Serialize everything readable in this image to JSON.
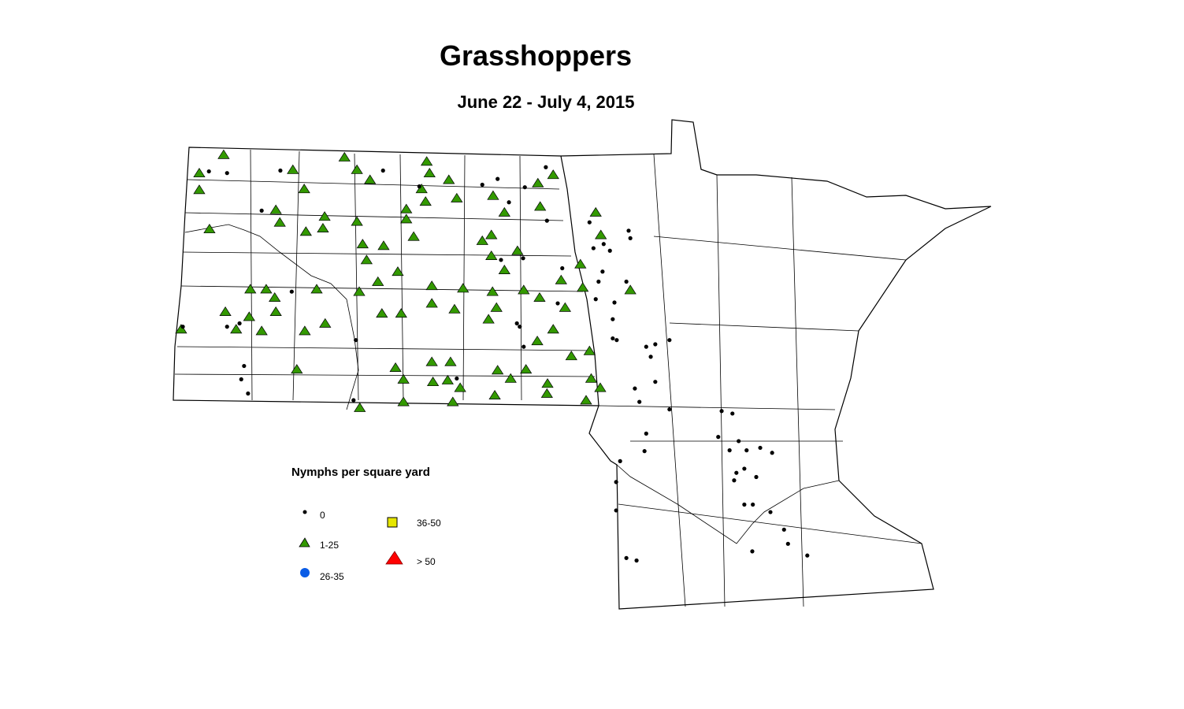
{
  "title": "Grasshoppers",
  "subtitle": "June 22 - July 4, 2015",
  "legend": {
    "title": "Nymphs per square yard",
    "classes": [
      {
        "label": "0",
        "symbol": "dot",
        "color": "#000000"
      },
      {
        "label": "1-25",
        "symbol": "triangle",
        "color": "#339900"
      },
      {
        "label": "26-35",
        "symbol": "circle",
        "color": "#0a5ce6"
      },
      {
        "label": "36-50",
        "symbol": "square",
        "color": "#e6e600"
      },
      {
        "label": "> 50",
        "symbol": "triangle-large",
        "color": "#ff0000"
      }
    ]
  },
  "regions": [
    "North Dakota",
    "Minnesota"
  ],
  "observations": {
    "class_1_25": [
      [
        -103.19,
        48.94
      ],
      [
        -103.62,
        48.72
      ],
      [
        -103.62,
        48.52
      ],
      [
        -103.44,
        48.05
      ],
      [
        -101.97,
        48.76
      ],
      [
        -101.77,
        48.53
      ],
      [
        -102.27,
        48.28
      ],
      [
        -102.2,
        48.13
      ],
      [
        -101.74,
        48.02
      ],
      [
        -101.41,
        48.2
      ],
      [
        -101.44,
        48.06
      ],
      [
        -100.84,
        48.14
      ],
      [
        -100.74,
        47.87
      ],
      [
        -100.67,
        47.68
      ],
      [
        -100.37,
        47.85
      ],
      [
        -100.12,
        47.54
      ],
      [
        -100.47,
        47.42
      ],
      [
        -100.8,
        47.3
      ],
      [
        -100.4,
        47.04
      ],
      [
        -100.06,
        47.04
      ],
      [
        -99.52,
        47.37
      ],
      [
        -98.97,
        47.34
      ],
      [
        -99.52,
        47.16
      ],
      [
        -99.12,
        47.09
      ],
      [
        -98.47,
        47.98
      ],
      [
        -98.47,
        47.73
      ],
      [
        -98.01,
        47.79
      ],
      [
        -98.24,
        47.56
      ],
      [
        -98.45,
        47.3
      ],
      [
        -98.38,
        47.11
      ],
      [
        -98.52,
        46.97
      ],
      [
        -97.9,
        47.32
      ],
      [
        -97.62,
        47.23
      ],
      [
        -97.24,
        47.44
      ],
      [
        -97.17,
        47.11
      ],
      [
        -97.38,
        46.85
      ],
      [
        -97.66,
        46.71
      ],
      [
        -96.9,
        47.63
      ],
      [
        -96.63,
        48.25
      ],
      [
        -96.54,
        47.98
      ],
      [
        -96.74,
        46.59
      ],
      [
        -96.71,
        46.26
      ],
      [
        -96.55,
        46.15
      ],
      [
        -96.8,
        46.0
      ],
      [
        -96.02,
        47.32
      ],
      [
        -102.72,
        47.33
      ],
      [
        -102.44,
        47.33
      ],
      [
        -102.29,
        47.23
      ],
      [
        -103.16,
        47.06
      ],
      [
        -102.74,
        47.0
      ],
      [
        -102.52,
        46.83
      ],
      [
        -102.27,
        47.06
      ],
      [
        -101.76,
        46.83
      ],
      [
        -101.4,
        46.92
      ],
      [
        -101.9,
        46.37
      ],
      [
        -103.94,
        46.85
      ],
      [
        -101.55,
        47.33
      ],
      [
        -100.79,
        45.91
      ],
      [
        -100.16,
        46.39
      ],
      [
        -100.02,
        46.25
      ],
      [
        -100.02,
        45.98
      ],
      [
        -99.52,
        46.46
      ],
      [
        -99.19,
        46.46
      ],
      [
        -99.5,
        46.22
      ],
      [
        -99.24,
        46.24
      ],
      [
        -99.02,
        46.15
      ],
      [
        -99.15,
        45.98
      ],
      [
        -98.36,
        46.36
      ],
      [
        -98.13,
        46.26
      ],
      [
        -98.41,
        46.06
      ],
      [
        -97.86,
        46.37
      ],
      [
        -97.48,
        46.2
      ],
      [
        -97.49,
        46.08
      ],
      [
        -97.06,
        46.53
      ],
      [
        -101.06,
        48.91
      ],
      [
        -100.84,
        48.76
      ],
      [
        -100.61,
        48.64
      ],
      [
        -99.61,
        48.86
      ],
      [
        -99.56,
        48.72
      ],
      [
        -99.7,
        48.53
      ],
      [
        -99.63,
        48.38
      ],
      [
        -99.97,
        48.29
      ],
      [
        -99.97,
        48.17
      ],
      [
        -99.84,
        47.96
      ],
      [
        -99.08,
        48.42
      ],
      [
        -99.22,
        48.64
      ],
      [
        -97.65,
        48.6
      ],
      [
        -97.38,
        48.7
      ],
      [
        -97.61,
        48.32
      ],
      [
        -98.24,
        48.25
      ],
      [
        -98.44,
        48.45
      ],
      [
        -98.63,
        47.91
      ],
      [
        -96.86,
        47.35
      ],
      [
        -102.97,
        46.85
      ]
    ],
    "class_0": [
      [
        -103.45,
        48.74
      ],
      [
        -103.13,
        48.72
      ],
      [
        -102.52,
        48.27
      ],
      [
        -102.19,
        48.75
      ],
      [
        -101.99,
        47.3
      ],
      [
        -103.13,
        46.88
      ],
      [
        -102.91,
        46.92
      ],
      [
        -103.91,
        46.88
      ],
      [
        -102.83,
        46.41
      ],
      [
        -102.76,
        46.08
      ],
      [
        -102.88,
        46.25
      ],
      [
        -100.86,
        46.72
      ],
      [
        -100.9,
        46.0
      ],
      [
        -100.38,
        48.75
      ],
      [
        -99.74,
        48.56
      ],
      [
        -98.63,
        48.58
      ],
      [
        -98.36,
        48.65
      ],
      [
        -98.16,
        48.37
      ],
      [
        -97.88,
        48.55
      ],
      [
        -97.51,
        48.79
      ],
      [
        -97.49,
        48.15
      ],
      [
        -97.91,
        47.7
      ],
      [
        -98.3,
        47.68
      ],
      [
        -98.02,
        46.92
      ],
      [
        -97.9,
        46.64
      ],
      [
        -97.3,
        47.16
      ],
      [
        -97.22,
        47.58
      ],
      [
        -96.74,
        48.13
      ],
      [
        -96.67,
        47.82
      ],
      [
        -96.49,
        47.87
      ],
      [
        -96.38,
        47.79
      ],
      [
        -96.05,
        48.03
      ],
      [
        -96.02,
        47.94
      ],
      [
        -96.51,
        47.54
      ],
      [
        -96.63,
        47.21
      ],
      [
        -96.58,
        47.42
      ],
      [
        -96.3,
        47.17
      ],
      [
        -96.09,
        47.42
      ],
      [
        -96.33,
        46.97
      ],
      [
        -96.33,
        46.74
      ],
      [
        -96.26,
        46.72
      ],
      [
        -95.74,
        46.64
      ],
      [
        -95.58,
        46.67
      ],
      [
        -95.33,
        46.72
      ],
      [
        -95.66,
        46.52
      ],
      [
        -95.58,
        46.22
      ],
      [
        -95.94,
        46.14
      ],
      [
        -95.86,
        45.98
      ],
      [
        -95.33,
        45.89
      ],
      [
        -95.74,
        45.6
      ],
      [
        -95.77,
        45.39
      ],
      [
        -96.2,
        45.27
      ],
      [
        -96.27,
        45.02
      ],
      [
        -96.27,
        44.68
      ],
      [
        -94.41,
        45.87
      ],
      [
        -94.22,
        45.84
      ],
      [
        -94.47,
        45.56
      ],
      [
        -94.11,
        45.51
      ],
      [
        -94.27,
        45.4
      ],
      [
        -93.97,
        45.4
      ],
      [
        -93.73,
        45.43
      ],
      [
        -93.52,
        45.37
      ],
      [
        -94.15,
        45.13
      ],
      [
        -94.01,
        45.18
      ],
      [
        -93.8,
        45.08
      ],
      [
        -94.19,
        45.04
      ],
      [
        -94.01,
        44.75
      ],
      [
        -93.86,
        44.75
      ],
      [
        -93.55,
        44.66
      ],
      [
        -93.31,
        44.45
      ],
      [
        -93.87,
        44.19
      ],
      [
        -92.9,
        44.14
      ],
      [
        -96.09,
        44.11
      ],
      [
        -95.91,
        44.08
      ],
      [
        -93.24,
        44.28
      ],
      [
        -99.08,
        46.26
      ],
      [
        -97.97,
        46.88
      ]
    ],
    "class_26_35": [],
    "class_36_50": [],
    "class_gt_50": []
  }
}
